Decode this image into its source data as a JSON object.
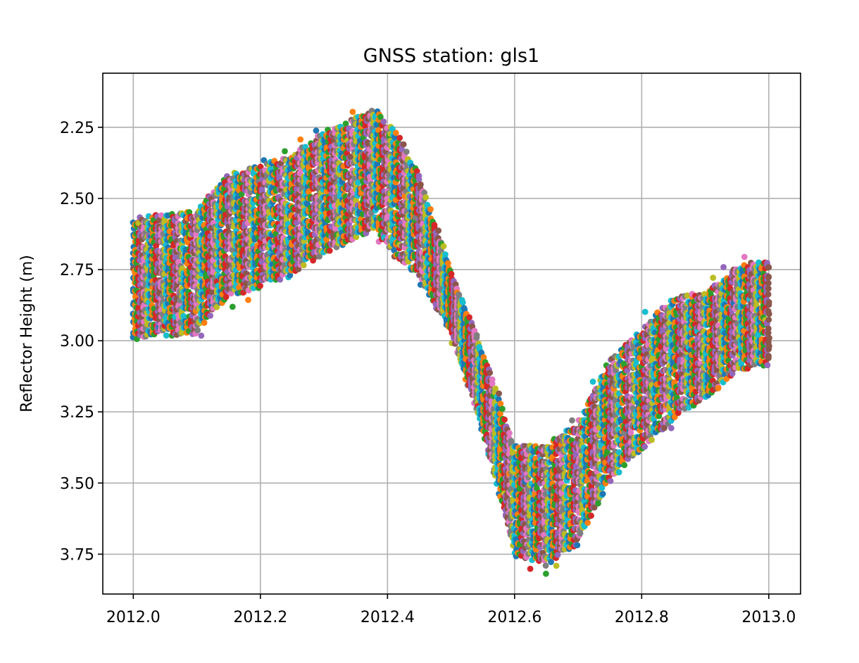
{
  "chart_data": {
    "type": "scatter",
    "title": "GNSS station: gls1",
    "xlabel": "",
    "ylabel": "Reflector Height (m)",
    "xlim": [
      2011.952,
      2013.05
    ],
    "ylim": [
      3.89,
      2.06
    ],
    "y_inverted": true,
    "grid": true,
    "xticks": [
      2012.0,
      2012.2,
      2012.4,
      2012.6,
      2012.8,
      2013.0
    ],
    "xtick_labels": [
      "2012.0",
      "2012.2",
      "2012.4",
      "2012.6",
      "2012.8",
      "2013.0"
    ],
    "yticks": [
      2.25,
      2.5,
      2.75,
      3.0,
      3.25,
      3.5,
      3.75
    ],
    "ytick_labels": [
      "2.25",
      "2.50",
      "2.75",
      "3.00",
      "3.25",
      "3.50",
      "3.75"
    ],
    "series_colors": [
      "#1f77b4",
      "#ff7f0e",
      "#2ca02c",
      "#d62728",
      "#9467bd",
      "#8c564b",
      "#e377c2",
      "#7f7f7f",
      "#bcbd22",
      "#17becf"
    ],
    "trend": {
      "x": [
        2012.0,
        2012.05,
        2012.1,
        2012.12,
        2012.15,
        2012.2,
        2012.25,
        2012.3,
        2012.35,
        2012.38,
        2012.42,
        2012.45,
        2012.5,
        2012.55,
        2012.6,
        2012.65,
        2012.7,
        2012.75,
        2012.8,
        2012.85,
        2012.9,
        2012.95,
        2013.0
      ],
      "center": [
        2.78,
        2.77,
        2.76,
        2.7,
        2.63,
        2.6,
        2.56,
        2.48,
        2.43,
        2.4,
        2.5,
        2.6,
        2.86,
        3.18,
        3.56,
        3.58,
        3.5,
        3.28,
        3.17,
        3.06,
        3.02,
        2.92,
        2.9
      ],
      "spread": [
        0.2,
        0.2,
        0.2,
        0.2,
        0.2,
        0.2,
        0.2,
        0.2,
        0.2,
        0.2,
        0.2,
        0.17,
        0.1,
        0.13,
        0.18,
        0.2,
        0.2,
        0.2,
        0.2,
        0.2,
        0.17,
        0.17,
        0.17
      ]
    }
  }
}
